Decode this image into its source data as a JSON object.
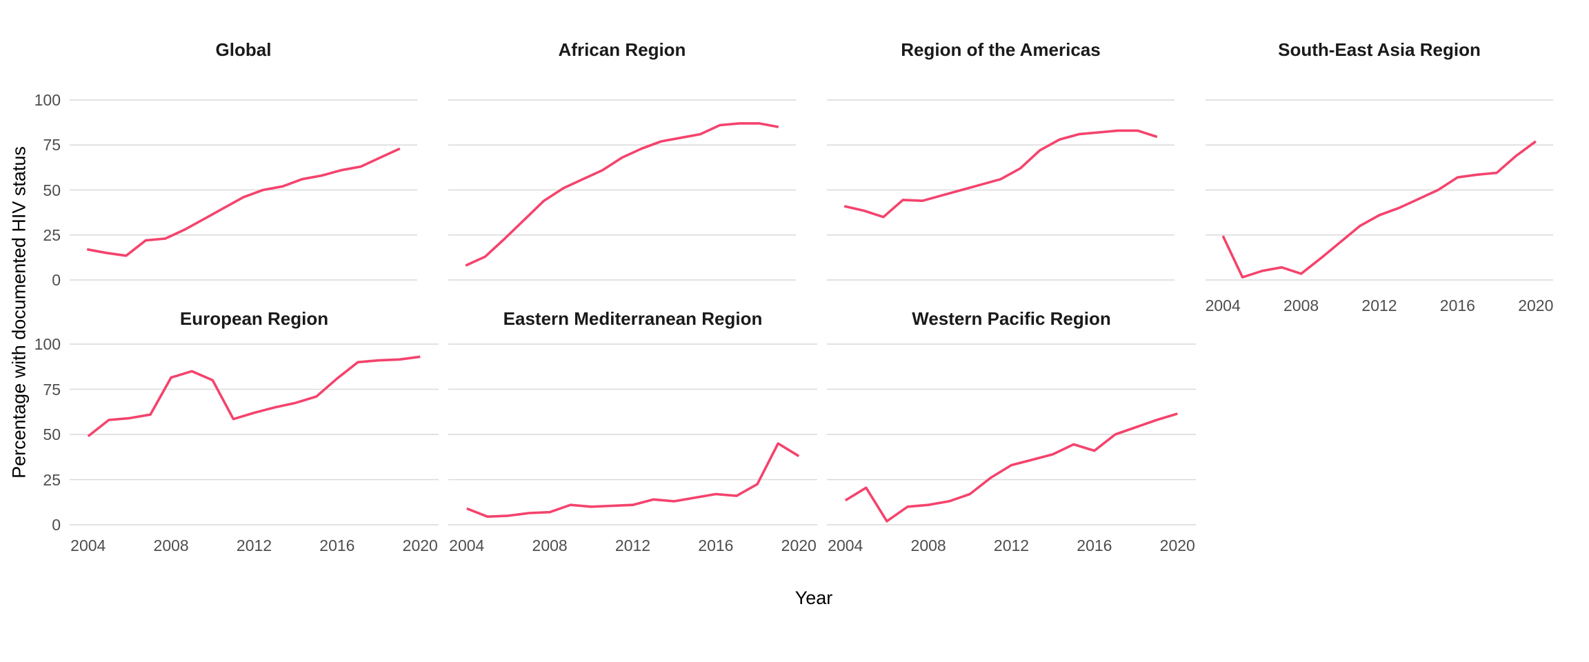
{
  "axes": {
    "y_title": "Percentage with documented HIV status",
    "x_title": "Year",
    "y_ticks": [
      "100",
      "75",
      "50",
      "25",
      "0"
    ],
    "x_ticks": [
      "2004",
      "2008",
      "2012",
      "2016",
      "2020"
    ]
  },
  "chart_data": {
    "type": "line",
    "title": "",
    "xlabel": "Year",
    "ylabel": "Percentage with documented HIV status",
    "x": [
      2004,
      2005,
      2006,
      2007,
      2008,
      2009,
      2010,
      2011,
      2012,
      2013,
      2014,
      2015,
      2016,
      2017,
      2018,
      2019,
      2020
    ],
    "xlim": [
      2004,
      2020
    ],
    "ylim": [
      0,
      100
    ],
    "y_gridlines": [
      0,
      25,
      50,
      75,
      100
    ],
    "x_tick_years": [
      2004,
      2008,
      2012,
      2016,
      2020
    ],
    "grid": "horizontal-only",
    "legend_position": "none",
    "line_color": "#f4436c",
    "grid_color": "#d9d9d9",
    "series": [
      {
        "name": "Global",
        "values": [
          17,
          15,
          13.5,
          22,
          23,
          28,
          34,
          40,
          46,
          50,
          52,
          56,
          58,
          61,
          63,
          68,
          73
        ]
      },
      {
        "name": "African Region",
        "values": [
          8,
          13,
          23,
          33.5,
          44,
          51,
          56,
          61,
          68,
          73,
          77,
          79,
          81,
          86,
          87,
          87,
          85
        ]
      },
      {
        "name": "Region of the Americas",
        "values": [
          41,
          38.5,
          35,
          44.5,
          44,
          47,
          50,
          53,
          56,
          62,
          72,
          78,
          81,
          82,
          83,
          83,
          79.5
        ]
      },
      {
        "name": "South-East Asia Region",
        "values": [
          24.5,
          1.5,
          5,
          7,
          3.5,
          12,
          21,
          30,
          36,
          40,
          45,
          50,
          57,
          58.5,
          59.5,
          69,
          77
        ]
      },
      {
        "name": "European Region",
        "values": [
          49,
          58,
          59,
          61,
          81.5,
          85,
          80,
          58.5,
          62,
          65,
          67.5,
          71,
          81,
          90,
          91,
          91.5,
          93
        ]
      },
      {
        "name": "Eastern Mediterranean Region",
        "values": [
          9,
          4.5,
          5,
          6.5,
          7,
          11,
          10,
          10.5,
          11,
          14,
          13,
          15,
          17,
          16,
          22.5,
          45,
          38
        ]
      },
      {
        "name": "Western Pacific Region",
        "values": [
          13.5,
          20.5,
          2,
          10,
          11,
          13,
          17,
          26,
          33,
          36,
          39,
          44.5,
          41,
          50,
          54,
          58,
          61.5
        ]
      }
    ]
  }
}
